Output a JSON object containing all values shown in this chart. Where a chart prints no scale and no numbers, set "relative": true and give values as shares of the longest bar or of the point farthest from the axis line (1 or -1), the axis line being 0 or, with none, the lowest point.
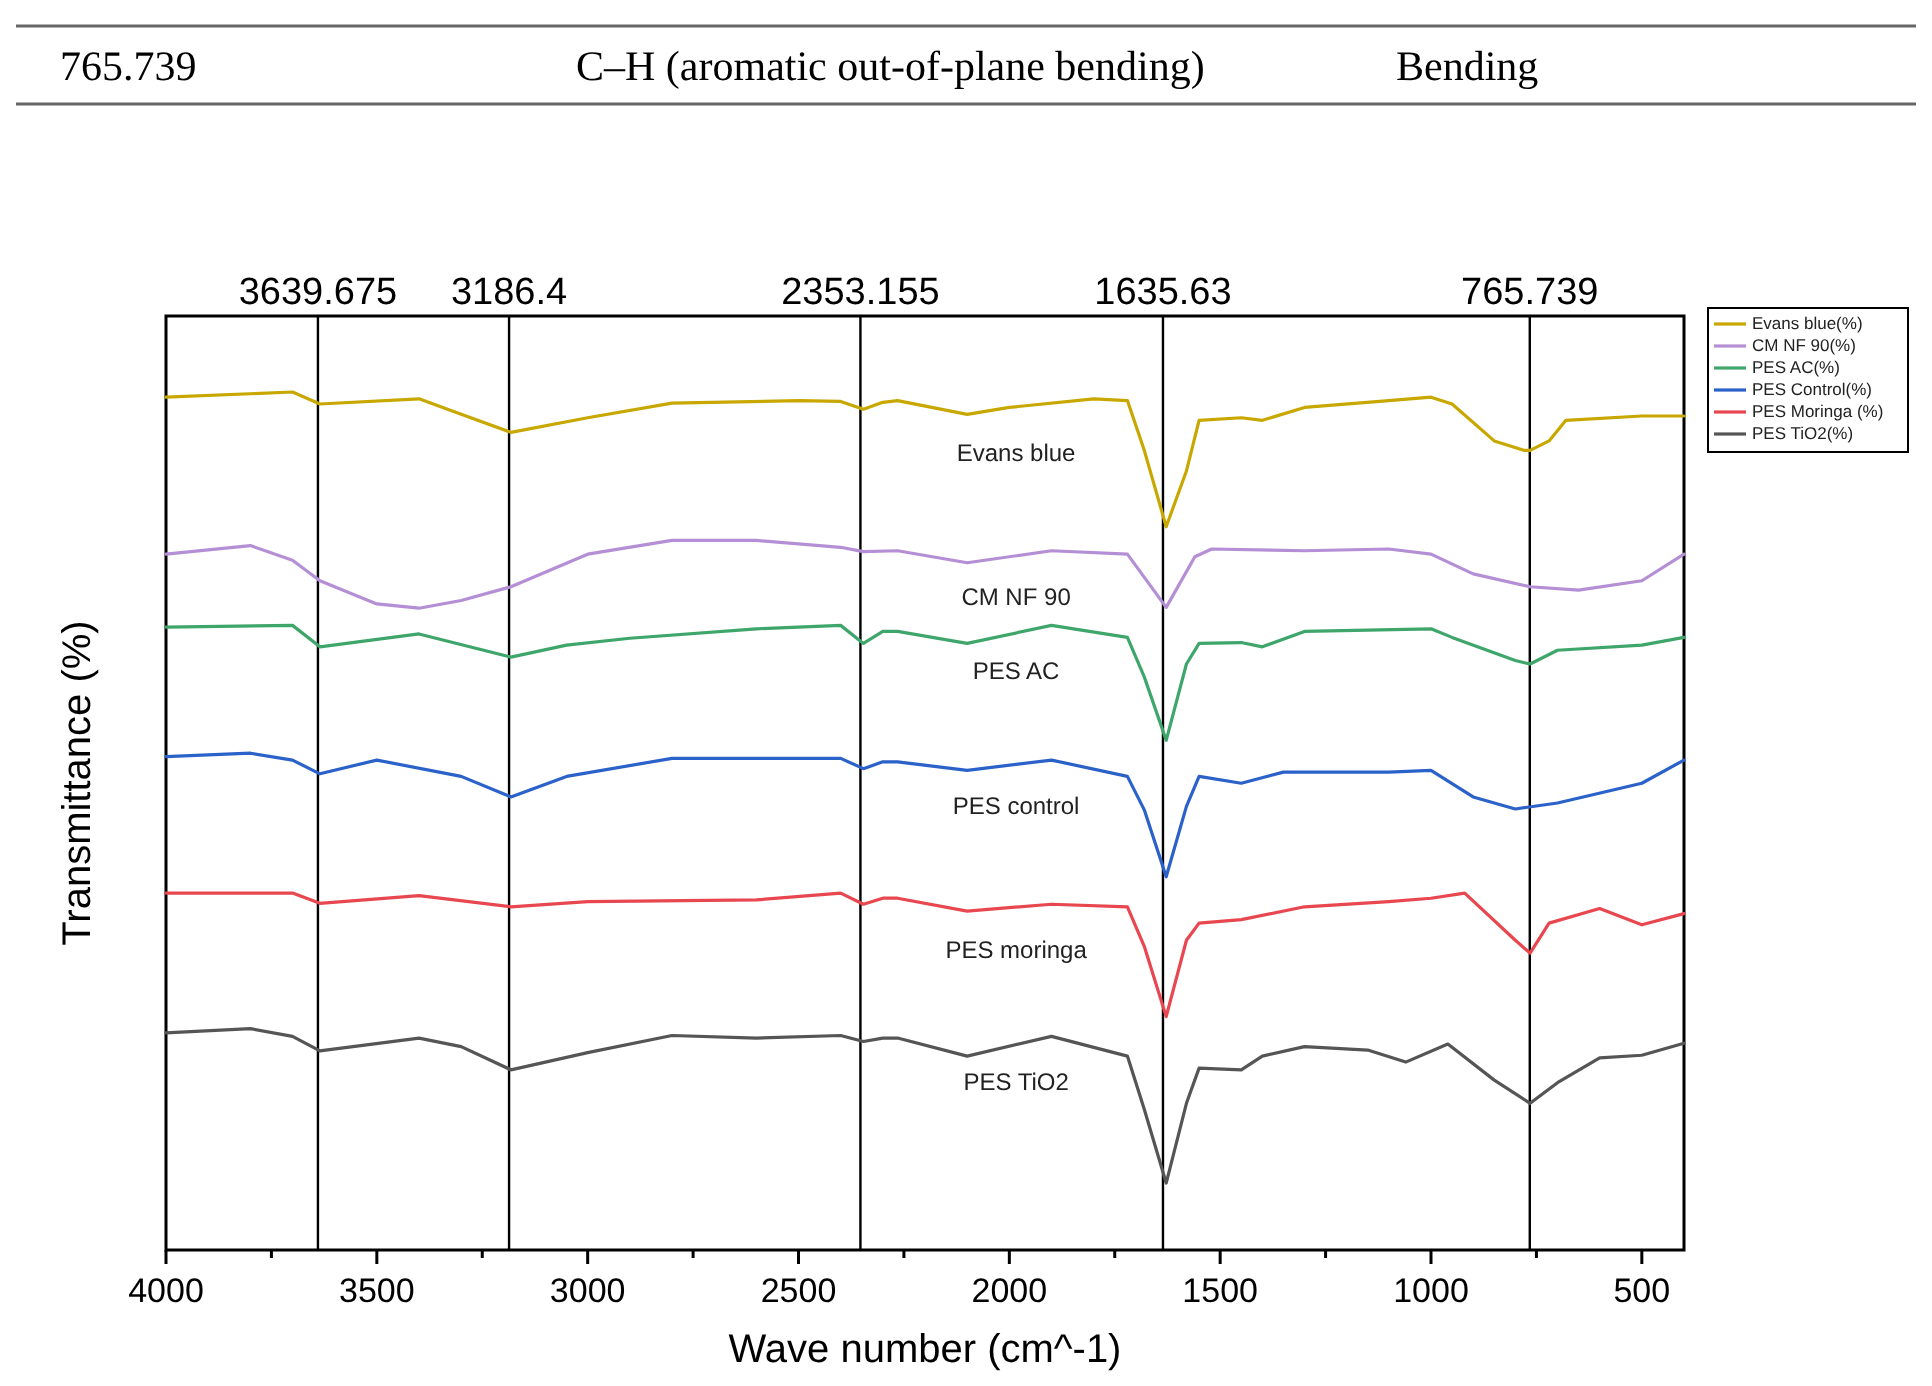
{
  "chart_data": {
    "type": "line",
    "relative": true,
    "xlabel": "Wave number (cm^-1)",
    "ylabel": "Transmittance (%)",
    "xlim": [
      4000,
      400
    ],
    "xticks": [
      4000,
      {
        "value": 3750,
        "label": null
      },
      3500,
      {
        "value": 3250,
        "label": null
      },
      3000,
      {
        "value": 2750,
        "label": null
      },
      2500,
      {
        "value": 2250,
        "label": null
      },
      2000,
      {
        "value": 1750,
        "label": null
      },
      1500,
      {
        "value": 1250,
        "label": null
      },
      1000,
      {
        "value": 750,
        "label": null
      },
      500
    ],
    "tick_labels": "x",
    "grid": false,
    "legend": "top right",
    "marker": "none",
    "line_style": "solid",
    "series": [
      {
        "name": "Evans blue(%)",
        "color": "#c8a800",
        "x": [
          4000,
          3700,
          3635,
          3400,
          3300,
          3182,
          3000,
          2800,
          2500,
          2400,
          2346,
          2300,
          2265,
          2100,
          2000,
          1800,
          1720,
          1680,
          1628,
          1580,
          1550,
          1450,
          1400,
          1300,
          1100,
          1000,
          950,
          850,
          780,
          765,
          720,
          680,
          500,
          400
        ],
        "values": [
          0.994,
          1.0,
          0.986,
          0.992,
          0.974,
          0.953,
          0.97,
          0.987,
          0.99,
          0.989,
          0.98,
          0.988,
          0.99,
          0.974,
          0.982,
          0.992,
          0.99,
          0.932,
          0.843,
          0.908,
          0.967,
          0.97,
          0.967,
          0.982,
          0.99,
          0.994,
          0.986,
          0.943,
          0.932,
          0.932,
          0.943,
          0.967,
          0.972,
          0.972
        ]
      },
      {
        "name": "CM NF 90(%)",
        "color": "#b58fd6",
        "x": [
          4000,
          3800,
          3700,
          3635,
          3500,
          3400,
          3300,
          3182,
          3000,
          2800,
          2600,
          2400,
          2346,
          2265,
          2100,
          1900,
          1720,
          1628,
          1560,
          1520,
          1300,
          1100,
          1000,
          900,
          765,
          650,
          500,
          400
        ],
        "values": [
          0.811,
          0.821,
          0.804,
          0.78,
          0.753,
          0.748,
          0.757,
          0.773,
          0.811,
          0.827,
          0.827,
          0.819,
          0.814,
          0.815,
          0.801,
          0.815,
          0.811,
          0.749,
          0.808,
          0.817,
          0.815,
          0.817,
          0.811,
          0.788,
          0.773,
          0.769,
          0.78,
          0.811
        ]
      },
      {
        "name": "PES AC(%)",
        "color": "#3fa66b",
        "x": [
          4000,
          3700,
          3635,
          3400,
          3182,
          3050,
          2900,
          2600,
          2400,
          2346,
          2300,
          2265,
          2100,
          1900,
          1720,
          1680,
          1628,
          1580,
          1550,
          1450,
          1400,
          1300,
          1000,
          950,
          800,
          765,
          700,
          500,
          400
        ],
        "values": [
          0.726,
          0.728,
          0.703,
          0.718,
          0.691,
          0.705,
          0.713,
          0.724,
          0.728,
          0.707,
          0.721,
          0.721,
          0.707,
          0.728,
          0.714,
          0.668,
          0.594,
          0.683,
          0.707,
          0.708,
          0.703,
          0.721,
          0.724,
          0.714,
          0.687,
          0.683,
          0.699,
          0.705,
          0.714
        ]
      },
      {
        "name": "PES Control(%)",
        "color": "#2a62c9",
        "x": [
          4000,
          3800,
          3700,
          3635,
          3500,
          3300,
          3182,
          3050,
          2800,
          2400,
          2346,
          2300,
          2265,
          2100,
          1900,
          1720,
          1680,
          1628,
          1580,
          1550,
          1450,
          1350,
          1100,
          1000,
          900,
          800,
          700,
          500,
          400
        ],
        "values": [
          0.575,
          0.579,
          0.571,
          0.555,
          0.571,
          0.552,
          0.528,
          0.552,
          0.573,
          0.573,
          0.561,
          0.569,
          0.569,
          0.559,
          0.571,
          0.552,
          0.513,
          0.435,
          0.517,
          0.552,
          0.544,
          0.557,
          0.557,
          0.559,
          0.528,
          0.514,
          0.521,
          0.544,
          0.571
        ]
      },
      {
        "name": "PES Moringa (%)",
        "color": "#e8474f",
        "x": [
          4000,
          3700,
          3635,
          3400,
          3182,
          3000,
          2600,
          2400,
          2346,
          2300,
          2265,
          2100,
          1900,
          1720,
          1680,
          1628,
          1580,
          1550,
          1450,
          1300,
          1100,
          1000,
          920,
          800,
          765,
          720,
          600,
          500,
          400
        ],
        "values": [
          0.416,
          0.416,
          0.404,
          0.413,
          0.4,
          0.406,
          0.408,
          0.416,
          0.403,
          0.41,
          0.41,
          0.395,
          0.403,
          0.4,
          0.354,
          0.272,
          0.361,
          0.381,
          0.385,
          0.4,
          0.406,
          0.41,
          0.416,
          0.361,
          0.346,
          0.381,
          0.398,
          0.379,
          0.392
        ]
      },
      {
        "name": "PES TiO2(%)",
        "color": "#555555",
        "x": [
          4000,
          3800,
          3700,
          3635,
          3400,
          3300,
          3182,
          3000,
          2800,
          2600,
          2400,
          2346,
          2300,
          2265,
          2100,
          1900,
          1720,
          1680,
          1628,
          1580,
          1550,
          1450,
          1400,
          1300,
          1150,
          1060,
          960,
          850,
          765,
          700,
          600,
          500,
          400
        ],
        "values": [
          0.253,
          0.258,
          0.249,
          0.232,
          0.247,
          0.237,
          0.21,
          0.23,
          0.25,
          0.247,
          0.25,
          0.243,
          0.247,
          0.247,
          0.226,
          0.249,
          0.226,
          0.164,
          0.078,
          0.171,
          0.212,
          0.21,
          0.226,
          0.237,
          0.233,
          0.219,
          0.24,
          0.198,
          0.171,
          0.195,
          0.224,
          0.227,
          0.241
        ]
      }
    ],
    "ref_lines": [
      {
        "axis": "x",
        "value": 3639.675,
        "label": "3639.675",
        "color": "#000000"
      },
      {
        "axis": "x",
        "value": 3186.4,
        "label": "3186.4",
        "color": "#000000"
      },
      {
        "axis": "x",
        "value": 2353.155,
        "label": "2353.155",
        "color": "#000000"
      },
      {
        "axis": "x",
        "value": 1635.63,
        "label": "1635.63",
        "color": "#000000"
      },
      {
        "axis": "x",
        "value": 765.739,
        "label": "765.739",
        "color": "#000000"
      }
    ],
    "annotations": [
      "765.739",
      "C–H (aromatic out-of-plane bending)",
      "Bending",
      "Evans blue",
      "CM NF 90",
      "PES AC",
      "PES control",
      "PES moringa",
      "PES TiO2"
    ]
  }
}
